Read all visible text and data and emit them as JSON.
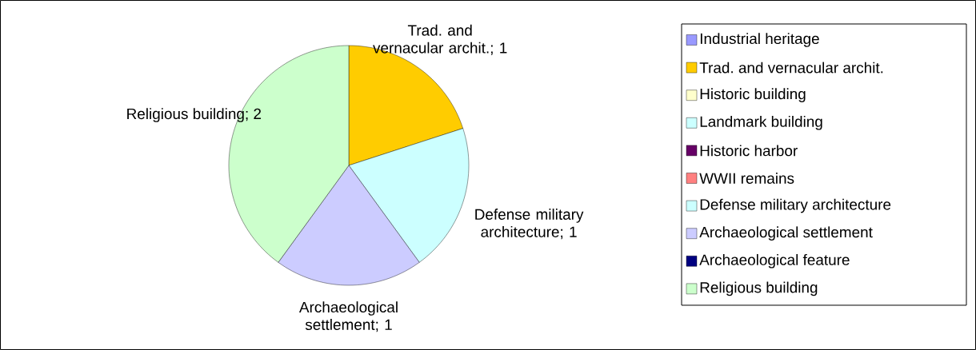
{
  "chart_data": {
    "type": "pie",
    "categories": [
      "Industrial heritage",
      "Trad. and vernacular archit.",
      "Historic building",
      "Landmark building",
      "Historic harbor",
      "WWII remains",
      "Defense military architecture",
      "Archaeological settlement",
      "Archaeological feature",
      "Religious building"
    ],
    "values": [
      0,
      1,
      0,
      0,
      0,
      0,
      1,
      1,
      0,
      2
    ],
    "colors": [
      "#9999ff",
      "#ffcc00",
      "#ffffcc",
      "#ccffff",
      "#660066",
      "#ff8080",
      "#ccffff",
      "#ccccff",
      "#000080",
      "#ccffcc"
    ],
    "value_labels": [
      null,
      "Trad. and vernacular archit.; 1",
      null,
      null,
      null,
      null,
      "Defense military architecture; 1",
      "Archaeological settlement; 1",
      null,
      "Religious building; 2"
    ],
    "legend": "right"
  }
}
